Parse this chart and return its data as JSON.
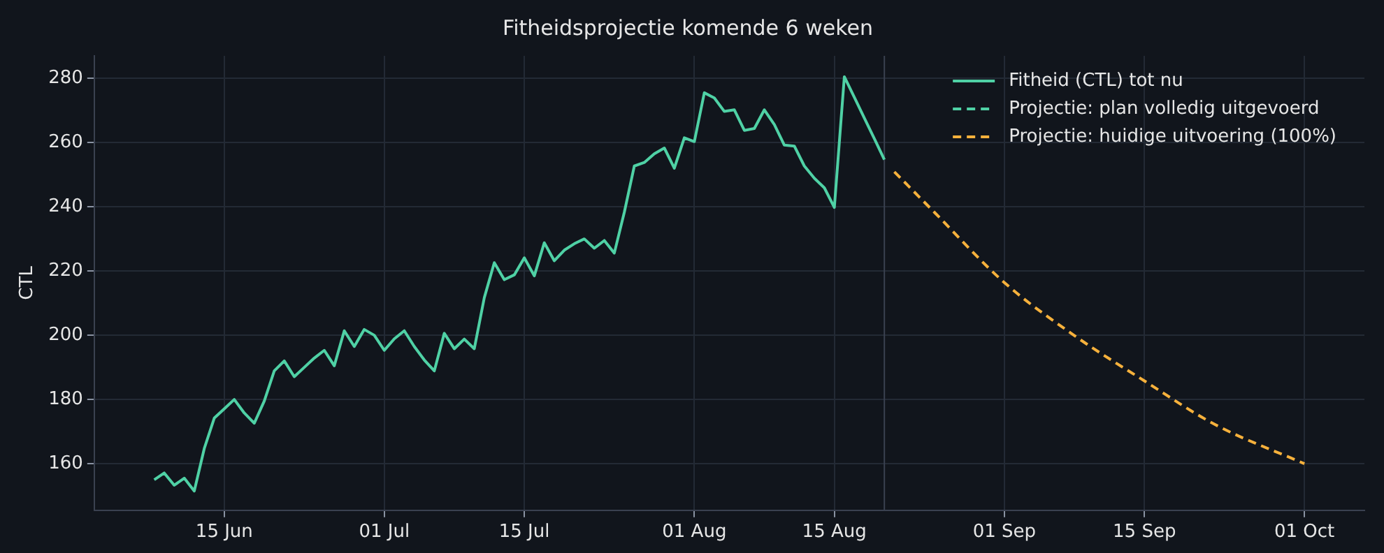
{
  "chart_data": {
    "type": "line",
    "title": "Fitheidsprojectie komende 6 weken",
    "ylabel": "CTL",
    "series": [
      {
        "name": "Fitheid (CTL) tot nu",
        "color": "#4fd1a5",
        "line_style": "solid",
        "x": [
          "--06-08",
          "--06-09",
          "--06-10",
          "--06-11",
          "--06-12",
          "--06-13",
          "--06-14",
          "--06-15",
          "--06-16",
          "--06-17",
          "--06-18",
          "--06-19",
          "--06-20",
          "--06-21",
          "--06-22",
          "--06-23",
          "--06-24",
          "--06-25",
          "--06-26",
          "--06-27",
          "--06-28",
          "--06-29",
          "--06-30",
          "--07-01",
          "--07-02",
          "--07-03",
          "--07-04",
          "--07-05",
          "--07-06",
          "--07-07",
          "--07-08",
          "--07-09",
          "--07-10",
          "--07-11",
          "--07-12",
          "--07-13",
          "--07-14",
          "--07-15",
          "--07-16",
          "--07-17",
          "--07-18",
          "--07-19",
          "--07-20",
          "--07-21",
          "--07-22",
          "--07-23",
          "--07-24",
          "--07-25",
          "--07-26",
          "--07-27",
          "--07-28",
          "--07-29",
          "--07-30",
          "--07-31",
          "--08-01",
          "--08-02",
          "--08-03",
          "--08-04",
          "--08-05",
          "--08-06",
          "--08-07",
          "--08-08",
          "--08-09",
          "--08-10",
          "--08-11",
          "--08-12",
          "--08-13",
          "--08-14",
          "--08-15",
          "--08-16",
          "--08-17",
          "--08-18",
          "--08-19",
          "--08-20"
        ],
        "values": [
          155.0,
          157.1,
          153.3,
          155.5,
          151.5,
          164.7,
          174.2,
          177.1,
          180.0,
          175.8,
          172.6,
          179.5,
          188.9,
          192.0,
          187.1,
          190.0,
          192.9,
          195.3,
          190.5,
          201.4,
          196.5,
          201.8,
          200.0,
          195.3,
          198.9,
          201.4,
          196.5,
          192.3,
          188.9,
          200.6,
          195.8,
          198.8,
          195.8,
          211.7,
          222.6,
          217.3,
          218.8,
          224.1,
          218.5,
          228.8,
          223.2,
          226.5,
          228.5,
          230.0,
          227.1,
          229.5,
          225.6,
          238.3,
          252.7,
          253.8,
          256.5,
          258.3,
          252.0,
          261.5,
          260.3,
          275.5,
          273.9,
          269.7,
          270.2,
          263.8,
          264.4,
          270.2,
          265.6,
          259.2,
          258.9,
          252.7,
          248.9,
          245.9,
          239.8,
          280.5,
          274.1,
          267.6,
          261.2,
          254.7
        ]
      },
      {
        "name": "Projectie: plan volledig uitgevoerd",
        "color": "#4fd1a5",
        "line_style": "dashed"
      },
      {
        "name": "Projectie: huidige uitvoering (100%)",
        "color": "#f6b13c",
        "line_style": "dashed",
        "x": [
          "--08-21",
          "--08-25",
          "--09-01",
          "--09-08",
          "--09-15",
          "--09-22",
          "--10-01"
        ],
        "values": [
          250.9,
          238.3,
          216.4,
          199.9,
          185.8,
          172.3,
          160.0
        ]
      }
    ],
    "xlim": [
      "--06-02",
      "--10-07"
    ],
    "ylim": [
      145.5,
      287
    ],
    "xticks": [
      {
        "value": "--06-15",
        "label": "15 Jun"
      },
      {
        "value": "--07-01",
        "label": "01 Jul"
      },
      {
        "value": "--07-15",
        "label": "15 Jul"
      },
      {
        "value": "--08-01",
        "label": "01 Aug"
      },
      {
        "value": "--08-15",
        "label": "15 Aug"
      },
      {
        "value": "--09-01",
        "label": "01 Sep"
      },
      {
        "value": "--09-15",
        "label": "15 Sep"
      },
      {
        "value": "--10-01",
        "label": "01 Oct"
      }
    ],
    "yticks": [
      160,
      180,
      200,
      220,
      240,
      260,
      280
    ],
    "grid": true,
    "legend": "top right",
    "marker": "none",
    "ref_lines": [
      {
        "axis": "x",
        "value": "--08-20",
        "color": "#3a4150"
      }
    ]
  }
}
